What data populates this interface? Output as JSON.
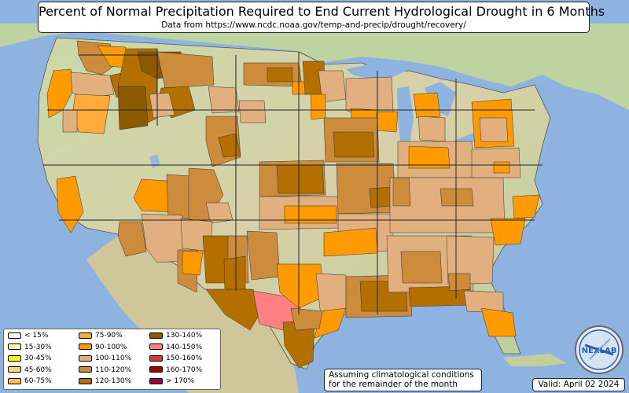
{
  "title": "Percent of Normal Precipitation Required to End Current Hydrological Drought in 6 Months",
  "subtitle": "Data from https://www.ncdc.noaa.gov/temp-and-precip/drought/recovery/",
  "note_line1": "Assuming climatological conditions",
  "note_line2": "for the remainder of the month",
  "valid": "Valid: April 02 2024",
  "logo_text": "NEXLAB",
  "legend": [
    {
      "label": "< 15%",
      "color": "#fffee6"
    },
    {
      "label": "15-30%",
      "color": "#fff5b0"
    },
    {
      "label": "30-45%",
      "color": "#ffff00"
    },
    {
      "label": "45-60%",
      "color": "#ffd27f"
    },
    {
      "label": "60-75%",
      "color": "#ffbf5a"
    },
    {
      "label": "75-90%",
      "color": "#ffab3c"
    },
    {
      "label": "90-100%",
      "color": "#ff9a00"
    },
    {
      "label": "100-110%",
      "color": "#e2b07e"
    },
    {
      "label": "110-120%",
      "color": "#cc8c3c"
    },
    {
      "label": "120-130%",
      "color": "#b36f00"
    },
    {
      "label": "130-140%",
      "color": "#8c5800"
    },
    {
      "label": "140-150%",
      "color": "#ff8080"
    },
    {
      "label": "150-160%",
      "color": "#d43a3a"
    },
    {
      "label": "160-170%",
      "color": "#a00000"
    },
    {
      "label": "> 170%",
      "color": "#a0004a"
    }
  ]
}
